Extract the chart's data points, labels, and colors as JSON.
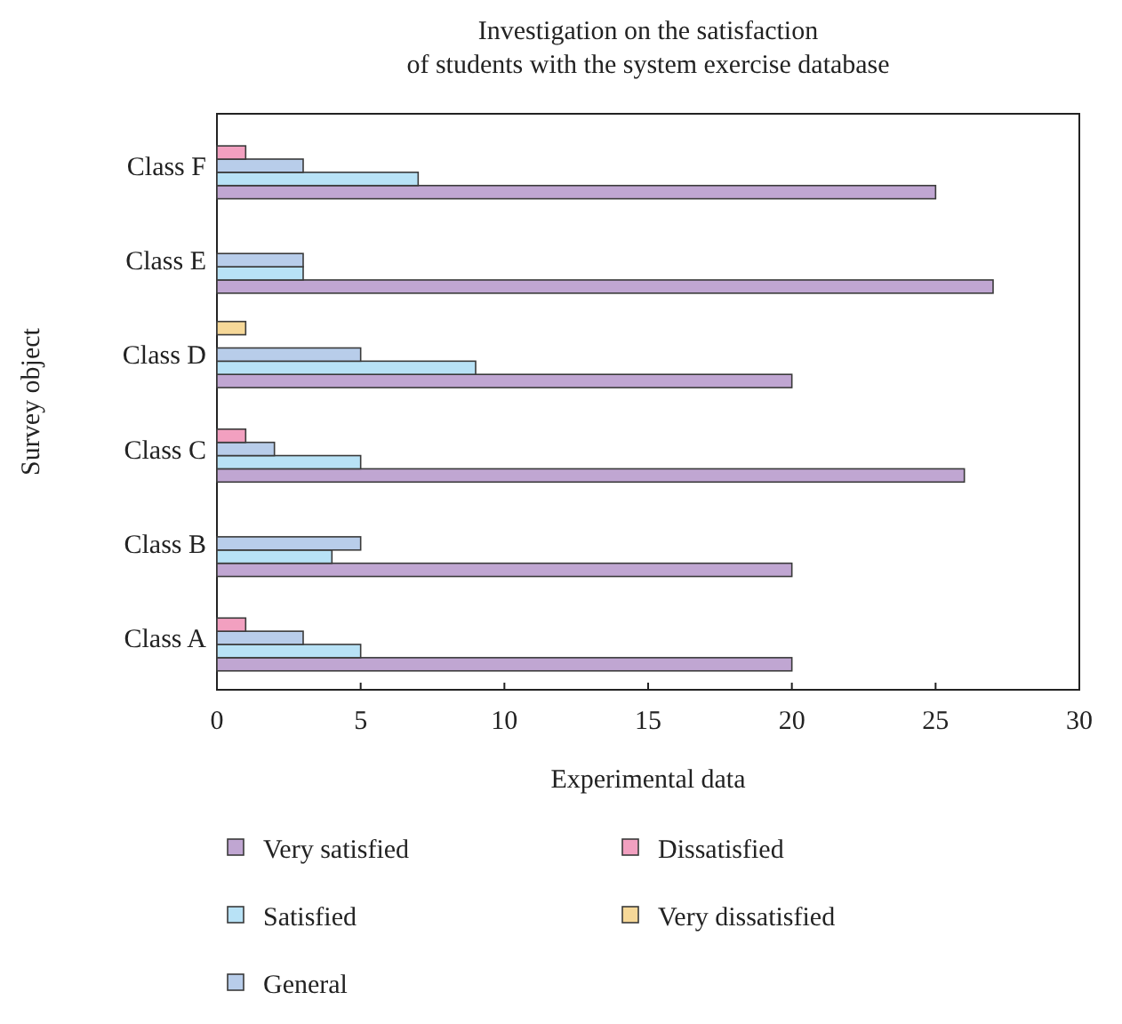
{
  "chart_data": {
    "type": "bar",
    "orientation": "horizontal",
    "title": "Investigation on the satisfaction\nof students with the system exercise database",
    "xlabel": "Experimental data",
    "ylabel": "Survey object",
    "categories": [
      "Class F",
      "Class E",
      "Class D",
      "Class C",
      "Class B",
      "Class A"
    ],
    "series": [
      {
        "name": "Very satisfied",
        "color": "#c0a6d2",
        "values": [
          25,
          27,
          20,
          26,
          20,
          20
        ]
      },
      {
        "name": "Satisfied",
        "color": "#b8e2f6",
        "values": [
          7,
          3,
          9,
          5,
          4,
          5
        ]
      },
      {
        "name": "General",
        "color": "#b8cdea",
        "values": [
          3,
          3,
          5,
          2,
          5,
          3
        ]
      },
      {
        "name": "Dissatisfied",
        "color": "#f2a0c0",
        "values": [
          1,
          0,
          0,
          1,
          0,
          1
        ]
      },
      {
        "name": "Very dissatisfied",
        "color": "#f6d898",
        "values": [
          0,
          0,
          1,
          0,
          0,
          0
        ]
      }
    ],
    "xlim": [
      0,
      30
    ],
    "xticks": [
      0,
      5,
      10,
      15,
      20,
      25,
      30
    ],
    "grid": false,
    "legend": "bottom"
  }
}
